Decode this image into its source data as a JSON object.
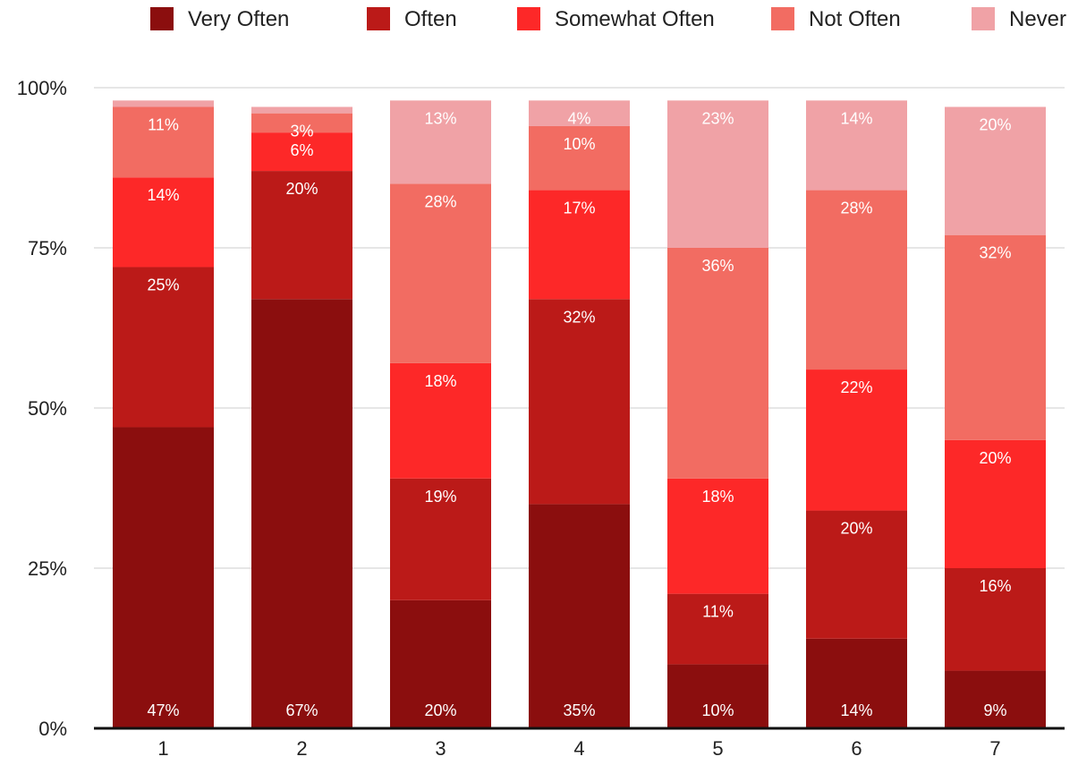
{
  "chart_data": {
    "type": "bar",
    "stacked": true,
    "categories": [
      "1",
      "2",
      "3",
      "4",
      "5",
      "6",
      "7"
    ],
    "series": [
      {
        "name": "Very Often",
        "color": "#8b0e0e",
        "values": [
          47,
          67,
          20,
          35,
          10,
          14,
          9
        ],
        "labels": [
          "47%",
          "67%",
          "20%",
          "35%",
          "10%",
          "14%",
          "9%"
        ]
      },
      {
        "name": "Often",
        "color": "#bb1a18",
        "values": [
          25,
          20,
          19,
          32,
          11,
          20,
          16
        ],
        "labels": [
          "25%",
          "20%",
          "19%",
          "32%",
          "11%",
          "20%",
          "16%"
        ]
      },
      {
        "name": "Somewhat Often",
        "color": "#fd2828",
        "values": [
          14,
          6,
          18,
          17,
          18,
          22,
          20
        ],
        "labels": [
          "14%",
          "6%",
          "18%",
          "17%",
          "18%",
          "22%",
          "20%"
        ]
      },
      {
        "name": "Not Often",
        "color": "#f26c62",
        "values": [
          11,
          3,
          28,
          10,
          36,
          28,
          32
        ],
        "labels": [
          "11%",
          "3%",
          "28%",
          "10%",
          "36%",
          "28%",
          "32%"
        ]
      },
      {
        "name": "Never",
        "color": "#f0a2a6",
        "values": [
          1,
          1,
          13,
          4,
          23,
          14,
          20
        ],
        "labels": [
          "",
          "",
          "13%",
          "4%",
          "23%",
          "14%",
          "20%"
        ]
      }
    ],
    "yticks": [
      "0%",
      "25%",
      "50%",
      "75%",
      "100%"
    ],
    "ylim": [
      0,
      100
    ],
    "grid": true,
    "legend": "top"
  }
}
